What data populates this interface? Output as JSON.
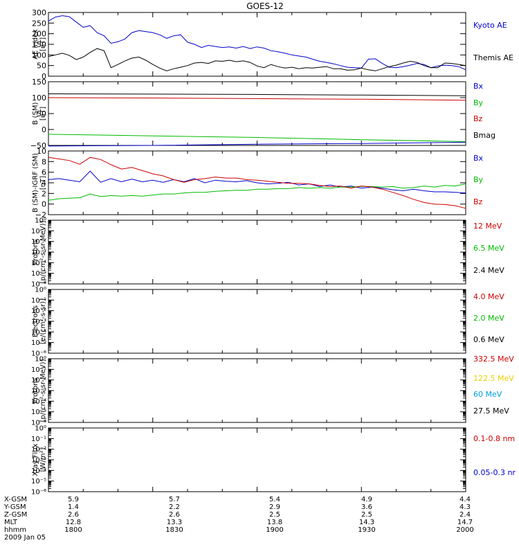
{
  "title": "GOES-12",
  "date_label": "2009 Jan 05",
  "time_labels": [
    "1800",
    "1830",
    "1900",
    "1930",
    "2000"
  ],
  "ephemeris": [
    {
      "label": "X-GSM",
      "values": [
        "5.9",
        "5.7",
        "5.4",
        "4.9",
        "4.4"
      ]
    },
    {
      "label": "Y-GSM",
      "values": [
        "1.4",
        "2.2",
        "2.9",
        "3.6",
        "4.3"
      ]
    },
    {
      "label": "Z-GSM",
      "values": [
        "2.6",
        "2.6",
        "2.5",
        "2.5",
        "2.4"
      ]
    },
    {
      "label": "MLT",
      "values": [
        "12.8",
        "13.3",
        "13.8",
        "14.3",
        "14.7"
      ]
    },
    {
      "label": "hhmm",
      "values": [
        "1800",
        "1830",
        "1900",
        "1930",
        "2000"
      ]
    }
  ],
  "colors": {
    "black": "#000000",
    "blue": "#0000cc",
    "red": "#cc0000",
    "green": "#00bb00",
    "yellow": "#e8d000",
    "cyan": "#00a0e0"
  },
  "chart_data": [
    {
      "type": "line",
      "ylabel": [
        "AE index",
        "[nT]"
      ],
      "ylim": [
        0,
        300
      ],
      "yticks": [
        0,
        50,
        100,
        150,
        200,
        250,
        300
      ],
      "ytick_labels": [
        "0",
        "50",
        "100",
        "150",
        "200",
        "250",
        "300"
      ],
      "xlim": [
        0,
        120
      ],
      "series": [
        {
          "name": "Kyoto AE",
          "color": "#0000cc",
          "x": [
            0,
            2,
            4,
            6,
            8,
            10,
            12,
            14,
            16,
            18,
            20,
            22,
            24,
            26,
            28,
            30,
            32,
            34,
            36,
            38,
            40,
            42,
            44,
            46,
            48,
            50,
            52,
            54,
            56,
            58,
            60,
            62,
            64,
            66,
            68,
            70,
            72,
            74,
            76,
            78,
            80,
            82,
            84,
            86,
            88,
            90,
            92,
            94,
            96,
            98,
            100,
            102,
            104,
            106,
            108,
            110,
            112,
            114,
            116,
            118,
            120
          ],
          "y": [
            260,
            278,
            285,
            280,
            255,
            230,
            238,
            205,
            190,
            155,
            162,
            175,
            205,
            215,
            210,
            205,
            195,
            178,
            190,
            195,
            160,
            150,
            135,
            145,
            140,
            135,
            138,
            132,
            140,
            130,
            138,
            132,
            120,
            115,
            108,
            100,
            95,
            90,
            80,
            70,
            65,
            58,
            50,
            42,
            40,
            38,
            80,
            82,
            60,
            42,
            40,
            45,
            52,
            60,
            55,
            40,
            48,
            52,
            50,
            45,
            30
          ]
        },
        {
          "name": "Themis AE",
          "color": "#000000",
          "x": [
            0,
            2,
            4,
            6,
            8,
            10,
            12,
            14,
            16,
            18,
            20,
            22,
            24,
            26,
            28,
            30,
            32,
            34,
            36,
            38,
            40,
            42,
            44,
            46,
            48,
            50,
            52,
            54,
            56,
            58,
            60,
            62,
            64,
            66,
            68,
            70,
            72,
            74,
            76,
            78,
            80,
            82,
            84,
            86,
            88,
            90,
            92,
            94,
            96,
            98,
            100,
            102,
            104,
            106,
            108,
            110,
            112,
            114,
            116,
            118,
            120
          ],
          "y": [
            92,
            100,
            108,
            98,
            78,
            90,
            112,
            130,
            120,
            40,
            55,
            72,
            85,
            90,
            75,
            55,
            38,
            25,
            35,
            42,
            50,
            62,
            65,
            60,
            72,
            70,
            75,
            68,
            72,
            65,
            48,
            40,
            55,
            45,
            38,
            42,
            35,
            40,
            38,
            42,
            45,
            35,
            35,
            28,
            30,
            38,
            30,
            25,
            35,
            45,
            52,
            62,
            70,
            65,
            50,
            40,
            40,
            62,
            60,
            55,
            50
          ]
        }
      ]
    },
    {
      "type": "line",
      "ylabel": [
        "B (SM)",
        "[nT]"
      ],
      "ylim": [
        -50,
        150
      ],
      "yticks": [
        -50,
        0,
        50,
        100,
        150
      ],
      "ytick_labels": [
        "−50",
        "0",
        "50",
        "100",
        "150"
      ],
      "xlim": [
        0,
        120
      ],
      "series": [
        {
          "name": "Bx",
          "color": "#0000cc",
          "x": [
            0,
            30,
            60,
            90,
            120
          ],
          "y": [
            -52,
            -50,
            -46,
            -44,
            -40
          ]
        },
        {
          "name": "By",
          "color": "#00bb00",
          "x": [
            0,
            30,
            60,
            90,
            120
          ],
          "y": [
            -15,
            -20,
            -25,
            -32,
            -38
          ]
        },
        {
          "name": "Bz",
          "color": "#cc0000",
          "x": [
            0,
            30,
            60,
            90,
            120
          ],
          "y": [
            100,
            99,
            97,
            95,
            92
          ]
        },
        {
          "name": "Bmag",
          "color": "#000000",
          "x": [
            0,
            30,
            60,
            90,
            120
          ],
          "y": [
            112,
            111,
            110,
            108,
            106
          ]
        }
      ]
    },
    {
      "type": "line",
      "ylabel": [
        "B (SM)-IGRF (SM)",
        "[nT]"
      ],
      "ylim": [
        -2,
        10
      ],
      "yticks": [
        -2,
        0,
        2,
        4,
        6,
        8,
        10
      ],
      "ytick_labels": [
        "−2",
        "0",
        "2",
        "4",
        "6",
        "8",
        "10"
      ],
      "xlim": [
        0,
        120
      ],
      "series": [
        {
          "name": "Bx",
          "color": "#0000cc",
          "x": [
            0,
            3,
            6,
            9,
            12,
            15,
            18,
            21,
            24,
            27,
            30,
            33,
            36,
            39,
            42,
            45,
            48,
            51,
            54,
            57,
            60,
            63,
            66,
            69,
            72,
            75,
            78,
            81,
            84,
            87,
            90,
            93,
            96,
            99,
            102,
            105,
            108,
            111,
            114,
            117,
            120
          ],
          "y": [
            4.6,
            4.8,
            4.5,
            4.2,
            6.2,
            4.1,
            4.8,
            4.2,
            4.7,
            4.2,
            4.5,
            4.1,
            4.6,
            4.2,
            4.8,
            4.0,
            4.5,
            4.3,
            4.2,
            4.4,
            4.0,
            3.8,
            3.9,
            4.1,
            3.6,
            3.8,
            3.3,
            3.6,
            3.2,
            3.4,
            3.0,
            3.2,
            3.0,
            2.7,
            2.5,
            2.8,
            2.5,
            2.3,
            2.3,
            2.2,
            2.1
          ]
        },
        {
          "name": "By",
          "color": "#00bb00",
          "x": [
            0,
            3,
            6,
            9,
            12,
            15,
            18,
            21,
            24,
            27,
            30,
            33,
            36,
            39,
            42,
            45,
            48,
            51,
            54,
            57,
            60,
            63,
            66,
            69,
            72,
            75,
            78,
            81,
            84,
            87,
            90,
            93,
            96,
            99,
            102,
            105,
            108,
            111,
            114,
            117,
            120
          ],
          "y": [
            0.7,
            1.0,
            1.1,
            1.2,
            1.9,
            1.4,
            1.6,
            1.5,
            1.6,
            1.5,
            1.7,
            1.9,
            1.9,
            2.1,
            2.2,
            2.2,
            2.4,
            2.5,
            2.6,
            2.6,
            2.8,
            2.8,
            2.9,
            2.9,
            3.1,
            3.0,
            3.1,
            3.0,
            3.2,
            3.2,
            3.3,
            3.3,
            3.2,
            3.3,
            3.0,
            3.1,
            3.4,
            3.2,
            3.5,
            3.4,
            3.8
          ]
        },
        {
          "name": "Bz",
          "color": "#cc0000",
          "x": [
            0,
            3,
            6,
            9,
            12,
            15,
            18,
            21,
            24,
            27,
            30,
            33,
            36,
            39,
            42,
            45,
            48,
            51,
            54,
            57,
            60,
            63,
            66,
            69,
            72,
            75,
            78,
            81,
            84,
            87,
            90,
            93,
            96,
            99,
            102,
            105,
            108,
            111,
            114,
            117,
            120
          ],
          "y": [
            8.8,
            8.5,
            8.2,
            7.5,
            8.8,
            8.4,
            7.4,
            6.6,
            6.9,
            6.3,
            5.7,
            5.3,
            4.6,
            4.1,
            4.6,
            4.8,
            5.1,
            4.9,
            4.9,
            4.6,
            4.5,
            4.3,
            4.1,
            3.9,
            3.9,
            3.8,
            3.5,
            3.3,
            3.4,
            3.0,
            3.4,
            3.2,
            2.8,
            2.2,
            1.6,
            0.9,
            0.3,
            0.0,
            -0.1,
            -0.3,
            -0.8
          ]
        }
      ]
    },
    {
      "type": "line",
      "scale": "log",
      "ylabel": [
        "Protons",
        "[p/(cm²-s-sr-MeV)]"
      ],
      "ylim": [
        1e-06,
        1
      ],
      "ytick_labels": [
        "10⁻⁶",
        "10⁻⁵",
        "10⁻⁴",
        "10⁻³",
        "10⁻²",
        "10⁻¹",
        "10⁰"
      ],
      "series": [
        {
          "name": "12 MeV",
          "color": "#cc0000"
        },
        {
          "name": "6.5 MeV",
          "color": "#00bb00"
        },
        {
          "name": "2.4 MeV",
          "color": "#000000"
        }
      ]
    },
    {
      "type": "line",
      "scale": "log",
      "ylabel": [
        "Electrons",
        "[e/(cm²-s-sr)]"
      ],
      "ylim": [
        1e-06,
        1
      ],
      "ytick_labels": [
        "10⁻⁶",
        "10⁻⁵",
        "10⁻⁴",
        "10⁻³",
        "10⁻²",
        "10⁻¹",
        "10⁰"
      ],
      "series": [
        {
          "name": "4.0 MeV",
          "color": "#cc0000"
        },
        {
          "name": "2.0 MeV",
          "color": "#00bb00"
        },
        {
          "name": "0.6 MeV",
          "color": "#000000"
        }
      ]
    },
    {
      "type": "line",
      "scale": "log",
      "ylabel": [
        "Protons",
        "[p/(cm²-s-sr-MeV)]"
      ],
      "ylim": [
        1e-06,
        1
      ],
      "ytick_labels": [
        "10⁻⁶",
        "10⁻⁵",
        "10⁻⁴",
        "10⁻³",
        "10⁻²",
        "10⁻¹",
        "10⁰"
      ],
      "series": [
        {
          "name": "332.5 MeV",
          "color": "#cc0000"
        },
        {
          "name": "122.5 MeV",
          "color": "#e8d000"
        },
        {
          "name": "60 MeV",
          "color": "#00a0e0"
        },
        {
          "name": "27.5 MeV",
          "color": "#000000"
        }
      ]
    },
    {
      "type": "line",
      "scale": "log",
      "ylabel": [
        "Xray Flux",
        "[W/m²]"
      ],
      "ylim": [
        1e-06,
        1
      ],
      "ytick_labels": [
        "10⁻⁶",
        "10⁻⁵",
        "10⁻⁴",
        "10⁻³",
        "10⁻²",
        "10⁻¹",
        "10⁰"
      ],
      "series": [
        {
          "name": "0.1-0.8 nm",
          "color": "#cc0000"
        },
        {
          "name": "0.05-0.3 nr",
          "color": "#0000cc"
        }
      ]
    }
  ]
}
